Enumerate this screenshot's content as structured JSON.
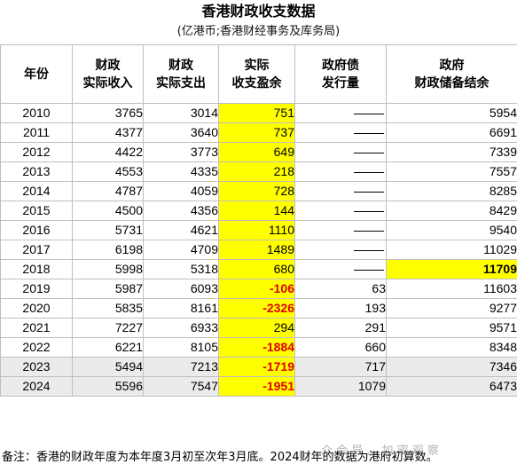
{
  "title": "香港财政收支数据",
  "subtitle": "(亿港币;香港财经事务及库务局)",
  "headers": {
    "year": "年份",
    "revenue": [
      "财政",
      "实际收入"
    ],
    "expense": [
      "财政",
      "实际支出"
    ],
    "surplus": [
      "实际",
      "收支盈余"
    ],
    "bonds": [
      "政府债",
      "发行量"
    ],
    "reserves": [
      "政府",
      "财政储备结余"
    ]
  },
  "rows": [
    {
      "year": "2010",
      "revenue": "3765",
      "expense": "3014",
      "surplus": "751",
      "bonds": "",
      "reserves": "5954"
    },
    {
      "year": "2011",
      "revenue": "4377",
      "expense": "3640",
      "surplus": "737",
      "bonds": "",
      "reserves": "6691"
    },
    {
      "year": "2012",
      "revenue": "4422",
      "expense": "3773",
      "surplus": "649",
      "bonds": "",
      "reserves": "7339"
    },
    {
      "year": "2013",
      "revenue": "4553",
      "expense": "4335",
      "surplus": "218",
      "bonds": "",
      "reserves": "7557"
    },
    {
      "year": "2014",
      "revenue": "4787",
      "expense": "4059",
      "surplus": "728",
      "bonds": "",
      "reserves": "8285"
    },
    {
      "year": "2015",
      "revenue": "4500",
      "expense": "4356",
      "surplus": "144",
      "bonds": "",
      "reserves": "8429"
    },
    {
      "year": "2016",
      "revenue": "5731",
      "expense": "4621",
      "surplus": "1110",
      "bonds": "",
      "reserves": "9540"
    },
    {
      "year": "2017",
      "revenue": "6198",
      "expense": "4709",
      "surplus": "1489",
      "bonds": "",
      "reserves": "11029"
    },
    {
      "year": "2018",
      "revenue": "5998",
      "expense": "5318",
      "surplus": "680",
      "bonds": "",
      "reserves": "11709"
    },
    {
      "year": "2019",
      "revenue": "5987",
      "expense": "6093",
      "surplus": "-106",
      "bonds": "63",
      "reserves": "11603"
    },
    {
      "year": "2020",
      "revenue": "5835",
      "expense": "8161",
      "surplus": "-2326",
      "bonds": "193",
      "reserves": "9277"
    },
    {
      "year": "2021",
      "revenue": "7227",
      "expense": "6933",
      "surplus": "294",
      "bonds": "291",
      "reserves": "9571"
    },
    {
      "year": "2022",
      "revenue": "6221",
      "expense": "8105",
      "surplus": "-1884",
      "bonds": "660",
      "reserves": "8348"
    },
    {
      "year": "2023",
      "revenue": "5494",
      "expense": "7213",
      "surplus": "-1719",
      "bonds": "717",
      "reserves": "7346"
    },
    {
      "year": "2024",
      "revenue": "5596",
      "expense": "7547",
      "surplus": "-1951",
      "bonds": "1079",
      "reserves": "6473"
    }
  ],
  "note": "备注：香港的财政年度为本年度3月初至次年3月底。2024财年的数据为港府初算数。",
  "watermark": "众 会 导 … 加 密 观 察",
  "colors": {
    "highlight": "#ffff00",
    "negative": "#e00000",
    "shaded_row": "#ebebeb",
    "grid": "#bfbfbf"
  }
}
